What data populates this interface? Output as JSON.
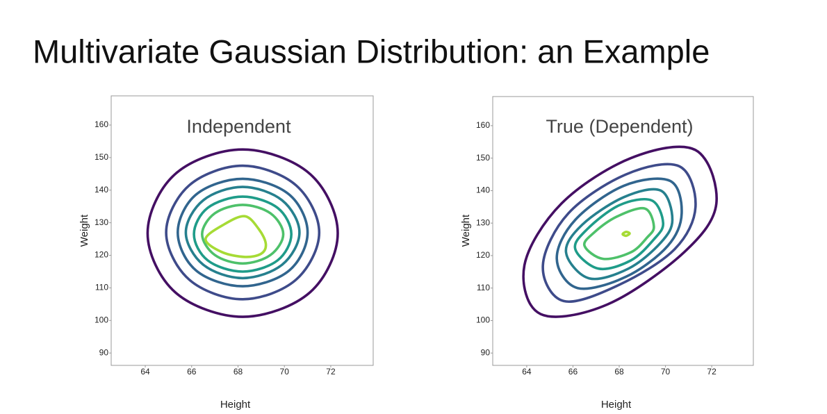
{
  "title": "Multivariate Gaussian Distribution: an Example",
  "chart_data": [
    {
      "type": "contour",
      "title": "Independent",
      "x_label": "Height",
      "y_label": "Weight",
      "xlim": [
        62.53,
        73.83
      ],
      "ylim": [
        86.2,
        168.96
      ],
      "xticks": [
        64,
        66,
        68,
        70,
        72
      ],
      "yticks": [
        90,
        100,
        110,
        120,
        130,
        140,
        150,
        160
      ],
      "series": [
        {
          "color": "#440f63",
          "x": [
            72.3,
            71.1,
            68.2,
            65.3,
            64.1,
            65.3,
            68.2,
            71.1
          ],
          "y": [
            126.8,
            145.0,
            152.5,
            145.0,
            126.8,
            108.6,
            101.1,
            108.6
          ]
        },
        {
          "color": "#3e4b8a",
          "x": [
            71.5,
            70.5,
            68.2,
            65.9,
            64.9,
            65.9,
            68.2,
            70.5
          ],
          "y": [
            127,
            141.5,
            147.5,
            141.5,
            127,
            112.5,
            106.5,
            112.5
          ]
        },
        {
          "color": "#31658e",
          "x": [
            71.0,
            70.2,
            68.2,
            66.2,
            65.4,
            66.2,
            68.2,
            70.2
          ],
          "y": [
            127,
            138.7,
            143.5,
            138.7,
            127,
            115.3,
            110.5,
            115.3
          ]
        },
        {
          "color": "#26808e",
          "x": [
            70.65,
            69.9,
            68.2,
            66.5,
            65.75,
            66.5,
            68.2,
            69.9
          ],
          "y": [
            127,
            136.9,
            141,
            136.9,
            127,
            117.1,
            113,
            117.1
          ]
        },
        {
          "color": "#1f9c89",
          "x": [
            70.3,
            69.7,
            68.2,
            66.7,
            66.1,
            66.7,
            68.2,
            69.7
          ],
          "y": [
            126.5,
            134.6,
            138,
            134.6,
            126.5,
            118.4,
            115,
            118.4
          ]
        },
        {
          "color": "#4ec16a",
          "x": [
            69.95,
            69.4,
            68.2,
            67.0,
            66.45,
            67.0,
            68.2,
            69.4
          ],
          "y": [
            126.5,
            132.9,
            135.5,
            132.9,
            126.5,
            120.1,
            117.5,
            120.1
          ]
        },
        {
          "color": "#a6db35",
          "x": [
            69.2,
            68.9,
            68.3,
            67.4,
            66.6,
            67.3,
            68.3,
            69.0
          ],
          "y": [
            123.5,
            128,
            132,
            129.5,
            125,
            121,
            119.5,
            120.5
          ]
        }
      ]
    },
    {
      "type": "contour",
      "title": "True (Dependent)",
      "x_label": "Height",
      "y_label": "Weight",
      "xlim": [
        62.53,
        73.8
      ],
      "ylim": [
        86.2,
        168.96
      ],
      "xticks": [
        64,
        66,
        68,
        70,
        72
      ],
      "yticks": [
        90,
        100,
        110,
        120,
        130,
        140,
        150,
        160
      ],
      "series": [
        {
          "color": "#440f63",
          "x": [
            72.2,
            71.3,
            68.5,
            65.5,
            63.9,
            64.6,
            67.5,
            70.8
          ],
          "y": [
            136,
            152.5,
            150,
            136,
            117,
            102,
            105,
            121
          ]
        },
        {
          "color": "#3e4b8a",
          "x": [
            71.3,
            70.6,
            68.3,
            65.8,
            64.7,
            65.6,
            68,
            70.4
          ],
          "y": [
            135,
            147.5,
            145,
            133,
            117,
            106,
            111,
            122
          ]
        },
        {
          "color": "#31658e",
          "x": [
            70.7,
            70.2,
            68.2,
            66.1,
            65.3,
            66.2,
            68.3,
            70.1
          ],
          "y": [
            133,
            143,
            141.5,
            131,
            119,
            110,
            113.5,
            123
          ]
        },
        {
          "color": "#26808e",
          "x": [
            70.3,
            69.8,
            68.2,
            66.4,
            65.7,
            66.7,
            68.4,
            69.8
          ],
          "y": [
            131,
            140,
            138,
            129.5,
            121,
            113,
            116,
            124
          ]
        },
        {
          "color": "#1f9c89",
          "x": [
            69.9,
            69.4,
            68,
            66.6,
            66.1,
            67.1,
            68.5,
            69.5
          ],
          "y": [
            130,
            137,
            135.5,
            128,
            122,
            116,
            118.5,
            125
          ]
        },
        {
          "color": "#4ec16a",
          "x": [
            69.5,
            69.1,
            67.9,
            66.9,
            66.5,
            67.3,
            68.5,
            69.2
          ],
          "y": [
            129,
            134.5,
            132,
            127,
            123,
            119,
            121,
            125.5
          ]
        },
        {
          "color": "#a6db35",
          "x": [
            68.45,
            68.3,
            68.15,
            68.3
          ],
          "y": [
            126.8,
            127.3,
            126.6,
            126.1
          ]
        }
      ]
    }
  ]
}
